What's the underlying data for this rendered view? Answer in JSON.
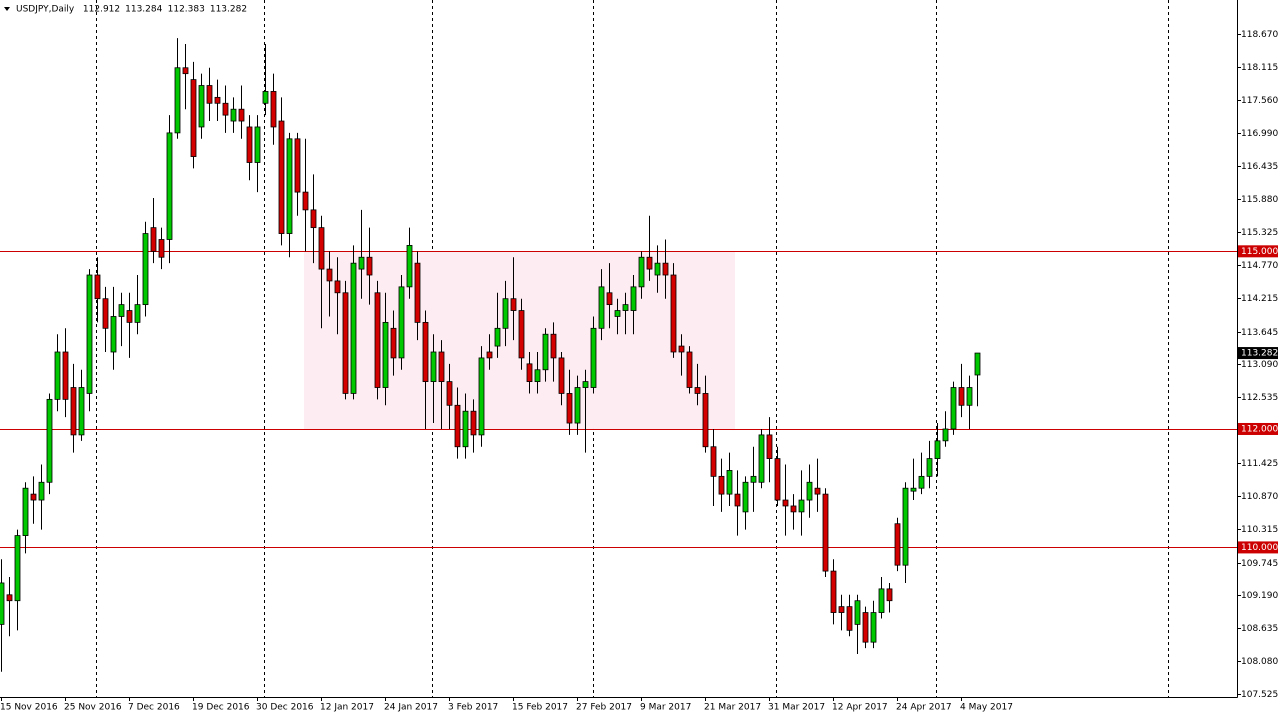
{
  "chart_data": {
    "type": "candlestick",
    "title": "USDJPY,Daily",
    "up_color": "#00c800",
    "down_color": "#d40000",
    "wick_color": "#000000",
    "level_color": "#cc0000",
    "zone_color": "#fdecf1",
    "grid": true,
    "ylim": [
      107.474,
      119.244
    ],
    "yticks": [
      {
        "value": 118.67,
        "label": "118.670"
      },
      118.115,
      {
        "value": 117.56,
        "label": "117.560"
      },
      {
        "value": 116.99,
        "label": "116.990"
      },
      116.435,
      {
        "value": 115.88,
        "label": "115.880"
      },
      115.325,
      {
        "value": 114.77,
        "label": "114.770"
      },
      114.215,
      113.645,
      {
        "value": 113.09,
        "label": "113.090"
      },
      112.535,
      {
        "value": 111.98,
        "label": "111.980"
      },
      111.425,
      {
        "value": 110.87,
        "label": "110.870"
      },
      110.315,
      109.745,
      {
        "value": 109.19,
        "label": "109.190"
      },
      108.635,
      {
        "value": 108.08,
        "label": "108.080"
      },
      107.525
    ],
    "hlines": [
      {
        "value": 115,
        "label": "115.000"
      },
      {
        "value": 112,
        "label": "112.000"
      },
      {
        "value": 110,
        "label": "110.000"
      }
    ],
    "categories": [
      "15 Nov 2016",
      null,
      null,
      null,
      null,
      null,
      null,
      null,
      "25 Nov 2016",
      null,
      null,
      null,
      null,
      null,
      null,
      null,
      "7 Dec 2016",
      null,
      null,
      null,
      null,
      null,
      null,
      null,
      "19 Dec 2016",
      null,
      null,
      null,
      null,
      null,
      null,
      null,
      "30 Dec 2016",
      null,
      null,
      null,
      null,
      null,
      null,
      null,
      "12 Jan 2017",
      null,
      null,
      null,
      null,
      null,
      null,
      null,
      "24 Jan 2017",
      null,
      null,
      null,
      null,
      null,
      null,
      null,
      "3 Feb 2017",
      null,
      null,
      null,
      null,
      null,
      null,
      null,
      "15 Feb 2017",
      null,
      null,
      null,
      null,
      null,
      null,
      null,
      "27 Feb 2017",
      null,
      null,
      null,
      null,
      null,
      null,
      null,
      "9 Mar 2017",
      null,
      null,
      null,
      null,
      null,
      null,
      null,
      "21 Mar 2017",
      null,
      null,
      null,
      null,
      null,
      null,
      null,
      "31 Mar 2017",
      null,
      null,
      null,
      null,
      null,
      null,
      null,
      "12 Apr 2017",
      null,
      null,
      null,
      null,
      null,
      null,
      null,
      "24 Apr 2017",
      null,
      null,
      null,
      null,
      null,
      null,
      null,
      "4 May 2017",
      null,
      null
    ],
    "open": [
      108.7,
      109.2,
      109.1,
      110.2,
      110.9,
      110.8,
      111.1,
      112.5,
      113.3,
      112.7,
      111.9,
      112.6,
      114.6,
      114.2,
      113.3,
      113.9,
      114.0,
      113.8,
      114.1,
      115.4,
      115.2,
      115.2,
      117.0,
      118.1,
      117.9,
      117.1,
      117.8,
      117.6,
      117.5,
      117.2,
      117.4,
      117.1,
      116.5,
      117.5,
      117.7,
      117.2,
      115.3,
      116.9,
      116.0,
      115.7,
      115.4,
      114.7,
      114.5,
      114.3,
      112.6,
      114.7,
      114.9,
      114.3,
      112.7,
      113.7,
      113.2,
      114.4,
      114.8,
      113.8,
      112.8,
      113.3,
      112.8,
      112.4,
      111.7,
      112.3,
      111.9,
      113.3,
      113.4,
      113.7,
      114.2,
      114.0,
      113.1,
      112.8,
      113.0,
      113.6,
      113.2,
      112.6,
      112.1,
      112.7,
      112.7,
      113.7,
      114.3,
      113.9,
      114.0,
      114.0,
      114.4,
      114.9,
      114.6,
      114.8,
      114.6,
      113.4,
      113.3,
      112.7,
      112.6,
      111.7,
      111.2,
      110.9,
      110.9,
      110.6,
      111.1,
      111.1,
      111.9,
      111.5,
      110.8,
      110.7,
      110.6,
      110.8,
      111.0,
      110.9,
      109.6,
      109.0,
      109.0,
      108.7,
      108.9,
      108.4,
      108.9,
      109.3,
      110.4,
      109.7,
      110.95,
      111.0,
      111.2,
      111.5,
      111.8,
      112.0,
      112.7,
      112.4,
      112.912
    ],
    "high": [
      109.8,
      109.5,
      110.3,
      111.1,
      111.2,
      111.4,
      112.6,
      113.6,
      113.7,
      113.1,
      113.0,
      114.7,
      114.9,
      114.4,
      114.4,
      114.3,
      114.3,
      114.6,
      115.5,
      115.9,
      115.4,
      117.3,
      118.6,
      118.5,
      118.2,
      118.0,
      118.1,
      117.9,
      117.8,
      117.6,
      117.8,
      117.3,
      117.3,
      118.5,
      118.0,
      117.6,
      117.0,
      117.0,
      116.9,
      116.3,
      115.6,
      115.0,
      114.9,
      114.5,
      115.1,
      115.7,
      115.4,
      114.5,
      114.3,
      114.0,
      114.6,
      115.4,
      115.0,
      114.0,
      113.6,
      113.5,
      113.1,
      112.7,
      112.6,
      112.5,
      113.4,
      113.6,
      114.3,
      114.5,
      114.9,
      114.2,
      113.3,
      113.3,
      113.7,
      113.8,
      113.3,
      113.0,
      112.9,
      113.0,
      113.9,
      114.7,
      114.8,
      114.2,
      114.3,
      114.6,
      115.0,
      115.6,
      115.1,
      115.2,
      114.8,
      113.6,
      113.4,
      113.1,
      112.9,
      112.0,
      111.5,
      111.6,
      111.3,
      111.2,
      111.7,
      112.0,
      112.2,
      111.7,
      111.4,
      110.9,
      111.3,
      111.4,
      111.5,
      111.0,
      109.8,
      109.2,
      109.2,
      109.2,
      109.0,
      109.1,
      109.5,
      109.4,
      110.5,
      111.1,
      111.5,
      111.6,
      111.8,
      112.1,
      112.3,
      112.8,
      113.1,
      112.9,
      113.284
    ],
    "low": [
      107.9,
      108.5,
      108.6,
      109.9,
      110.4,
      110.3,
      110.9,
      112.3,
      112.2,
      111.6,
      111.8,
      112.3,
      113.8,
      113.3,
      113.0,
      113.4,
      113.2,
      113.6,
      113.9,
      114.8,
      114.7,
      114.8,
      116.9,
      117.4,
      116.4,
      116.9,
      117.2,
      117.2,
      117.0,
      117.0,
      116.9,
      116.2,
      116.0,
      117.3,
      116.8,
      115.1,
      114.9,
      115.6,
      115.0,
      114.8,
      113.7,
      113.9,
      113.6,
      112.5,
      112.5,
      114.2,
      114.1,
      112.5,
      112.4,
      112.9,
      113.0,
      114.2,
      113.5,
      112.0,
      112.1,
      112.0,
      112.0,
      111.5,
      111.5,
      111.6,
      111.7,
      113.0,
      113.2,
      113.4,
      113.5,
      113.0,
      112.6,
      112.6,
      112.8,
      112.8,
      112.4,
      111.9,
      111.9,
      111.6,
      112.6,
      113.5,
      113.7,
      113.6,
      113.6,
      113.6,
      114.2,
      114.5,
      114.3,
      114.2,
      113.2,
      112.9,
      112.6,
      112.4,
      111.6,
      110.7,
      110.6,
      110.7,
      110.2,
      110.3,
      110.6,
      111.0,
      111.1,
      110.7,
      110.2,
      110.3,
      110.2,
      110.5,
      110.6,
      109.5,
      108.7,
      108.6,
      108.5,
      108.2,
      108.3,
      108.3,
      108.8,
      108.9,
      109.6,
      109.4,
      110.8,
      110.9,
      111.0,
      111.2,
      111.7,
      111.9,
      112.2,
      112.0,
      112.383
    ],
    "close": [
      109.4,
      109.1,
      110.2,
      111.0,
      110.8,
      111.1,
      112.5,
      113.3,
      112.5,
      111.9,
      112.7,
      114.6,
      114.2,
      113.7,
      113.9,
      114.1,
      113.8,
      114.1,
      115.3,
      115.0,
      114.9,
      117.0,
      118.1,
      118.0,
      116.6,
      117.8,
      117.5,
      117.5,
      117.3,
      117.4,
      117.2,
      116.5,
      117.1,
      117.7,
      117.1,
      115.3,
      116.9,
      116.0,
      115.7,
      115.4,
      114.7,
      114.5,
      114.3,
      112.6,
      114.8,
      114.9,
      114.6,
      112.7,
      113.8,
      113.2,
      114.4,
      115.1,
      113.8,
      112.8,
      113.3,
      112.8,
      112.4,
      111.7,
      112.3,
      111.9,
      113.2,
      113.2,
      113.7,
      114.2,
      114.0,
      113.2,
      112.8,
      113.0,
      113.6,
      113.2,
      112.6,
      112.1,
      112.7,
      112.8,
      113.7,
      114.4,
      114.1,
      114.0,
      114.1,
      114.4,
      114.9,
      114.7,
      114.8,
      114.6,
      113.3,
      113.3,
      112.7,
      112.6,
      111.7,
      111.2,
      110.9,
      111.3,
      110.7,
      111.1,
      111.2,
      111.9,
      111.5,
      110.8,
      110.7,
      110.6,
      110.8,
      111.1,
      110.9,
      109.6,
      108.9,
      108.9,
      108.6,
      109.1,
      108.4,
      108.9,
      109.3,
      109.1,
      109.7,
      111.0,
      111.0,
      111.2,
      111.5,
      111.8,
      112.0,
      112.7,
      112.4,
      112.7,
      113.282
    ]
  }
}
